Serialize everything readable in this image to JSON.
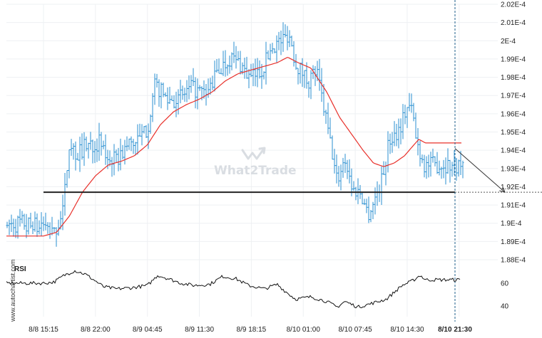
{
  "chart_data": {
    "type": "line",
    "price_axis": {
      "min": 0.000188,
      "max": 0.000202,
      "ticks": [
        {
          "value": 0.000202,
          "label": "2.02E-4"
        },
        {
          "value": 0.000201,
          "label": "2.01E-4"
        },
        {
          "value": 0.0002,
          "label": "2E-4"
        },
        {
          "value": 0.000199,
          "label": "1.99E-4"
        },
        {
          "value": 0.000198,
          "label": "1.98E-4"
        },
        {
          "value": 0.000197,
          "label": "1.97E-4"
        },
        {
          "value": 0.000196,
          "label": "1.96E-4"
        },
        {
          "value": 0.000195,
          "label": "1.95E-4"
        },
        {
          "value": 0.000194,
          "label": "1.94E-4"
        },
        {
          "value": 0.000193,
          "label": "1.93E-4"
        },
        {
          "value": 0.000192,
          "label": "1.92E-4"
        },
        {
          "value": 0.000191,
          "label": "1.91E-4"
        },
        {
          "value": 0.00019,
          "label": "1.9E-4"
        },
        {
          "value": 0.000189,
          "label": "1.89E-4"
        },
        {
          "value": 0.000188,
          "label": "1.88E-4"
        }
      ]
    },
    "x_ticks": [
      {
        "index": 0,
        "label": "8/8 15:15"
      },
      {
        "index": 1,
        "label": "8/8 22:00"
      },
      {
        "index": 2,
        "label": "8/9 04:45"
      },
      {
        "index": 3,
        "label": "8/9 11:30"
      },
      {
        "index": 4,
        "label": "8/9 18:15"
      },
      {
        "index": 5,
        "label": "8/10 01:00"
      },
      {
        "index": 6,
        "label": "8/10 07:45"
      },
      {
        "index": 7,
        "label": "8/10 14:30"
      },
      {
        "index": 8,
        "label": "8/10 21:30",
        "highlighted": true
      }
    ],
    "price_series": {
      "style": "ohlc-bars",
      "color": "#2a8fd0",
      "close_anchors": [
        [
          0,
          0.0001898
        ],
        [
          0.4,
          0.0001894
        ],
        [
          0.75,
          0.0001906
        ],
        [
          1.0,
          0.0001946
        ],
        [
          1.25,
          0.0001937
        ],
        [
          1.65,
          0.0001943
        ],
        [
          2.2,
          0.0001944
        ],
        [
          2.35,
          0.0001937
        ],
        [
          2.8,
          0.0001934
        ],
        [
          3.3,
          0.0001944
        ],
        [
          3.65,
          0.0001945
        ],
        [
          4.0,
          0.0001952
        ],
        [
          4.3,
          0.0001976
        ],
        [
          4.75,
          0.0001968
        ],
        [
          5.2,
          0.0001968
        ],
        [
          5.7,
          0.0001974
        ],
        [
          6.25,
          0.000197
        ],
        [
          6.7,
          0.0001983
        ],
        [
          7.2,
          0.0001991
        ],
        [
          7.6,
          0.0001987
        ],
        [
          7.95,
          0.0001979
        ],
        [
          8.4,
          0.0001984
        ],
        [
          8.8,
          0.0001997
        ],
        [
          9.15,
          0.0002
        ],
        [
          9.45,
          0.0002004
        ],
        [
          9.7,
          0.0001988
        ],
        [
          9.95,
          0.0001983
        ],
        [
          10.2,
          0.0001978
        ],
        [
          10.5,
          0.0001984
        ],
        [
          10.9,
          0.0001955
        ],
        [
          11.3,
          0.0001923
        ],
        [
          11.6,
          0.0001936
        ],
        [
          11.9,
          0.0001918
        ],
        [
          12.2,
          0.0001917
        ],
        [
          12.5,
          0.0001905
        ],
        [
          12.75,
          0.0001913
        ],
        [
          13.05,
          0.0001925
        ],
        [
          13.3,
          0.0001945
        ],
        [
          13.7,
          0.0001952
        ],
        [
          14.0,
          0.0001964
        ],
        [
          14.2,
          0.0001962
        ],
        [
          14.35,
          0.0001945
        ],
        [
          14.55,
          0.0001937
        ],
        [
          14.65,
          0.0001932
        ]
      ],
      "ma_anchors": [
        [
          0,
          0.0001893
        ],
        [
          0.5,
          0.0001895
        ],
        [
          1.0,
          0.0001904
        ],
        [
          1.5,
          0.0001917
        ],
        [
          2.0,
          0.0001926
        ],
        [
          2.5,
          0.0001932
        ],
        [
          3.0,
          0.0001934
        ],
        [
          3.5,
          0.0001937
        ],
        [
          4.0,
          0.0001943
        ],
        [
          4.5,
          0.0001954
        ],
        [
          5.0,
          0.0001961
        ],
        [
          5.5,
          0.0001965
        ],
        [
          6.0,
          0.0001968
        ],
        [
          6.5,
          0.0001972
        ],
        [
          7.0,
          0.0001978
        ],
        [
          7.5,
          0.0001982
        ],
        [
          8.0,
          0.0001984
        ],
        [
          8.5,
          0.0001986
        ],
        [
          9.0,
          0.0001988
        ],
        [
          9.4,
          0.0001991
        ],
        [
          9.8,
          0.0001988
        ],
        [
          10.3,
          0.0001985
        ],
        [
          10.9,
          0.0001972
        ],
        [
          11.4,
          0.0001958
        ],
        [
          11.9,
          0.0001948
        ],
        [
          12.3,
          0.000194
        ],
        [
          12.7,
          0.0001933
        ],
        [
          13.1,
          0.0001931
        ],
        [
          13.5,
          0.0001933
        ],
        [
          13.9,
          0.0001937
        ],
        [
          14.2,
          0.0001942
        ],
        [
          14.45,
          0.0001946
        ],
        [
          14.7,
          0.0001944
        ]
      ],
      "ma_color": "#e8302a"
    },
    "support_level": 0.0001917,
    "support_color": "#222222",
    "projection": {
      "from": 0.0001941,
      "to": 0.0001917
    },
    "rsi": {
      "label": "RSI",
      "ticks": [
        60,
        40
      ],
      "anchors": [
        [
          0,
          60
        ],
        [
          0.4,
          61
        ],
        [
          0.8,
          67
        ],
        [
          1.2,
          71
        ],
        [
          1.6,
          68
        ],
        [
          2.0,
          62
        ],
        [
          2.3,
          57
        ],
        [
          2.8,
          55
        ],
        [
          3.4,
          56
        ],
        [
          4.0,
          58
        ],
        [
          4.4,
          67
        ],
        [
          4.8,
          64
        ],
        [
          5.3,
          60
        ],
        [
          5.8,
          58
        ],
        [
          6.4,
          59
        ],
        [
          6.9,
          66
        ],
        [
          7.4,
          64
        ],
        [
          7.9,
          58
        ],
        [
          8.5,
          55
        ],
        [
          9.0,
          59
        ],
        [
          9.3,
          53
        ],
        [
          9.7,
          46
        ],
        [
          10.3,
          48
        ],
        [
          10.9,
          44
        ],
        [
          11.3,
          39
        ],
        [
          11.6,
          44
        ],
        [
          12.1,
          39
        ],
        [
          12.6,
          42
        ],
        [
          13.2,
          46
        ],
        [
          13.8,
          58
        ],
        [
          14.2,
          62
        ],
        [
          14.5,
          67
        ],
        [
          14.7,
          63
        ]
      ]
    }
  },
  "watermark": {
    "text": "What2Trade",
    "color": "#d9dde2"
  },
  "credit": "www.autochartist.com"
}
